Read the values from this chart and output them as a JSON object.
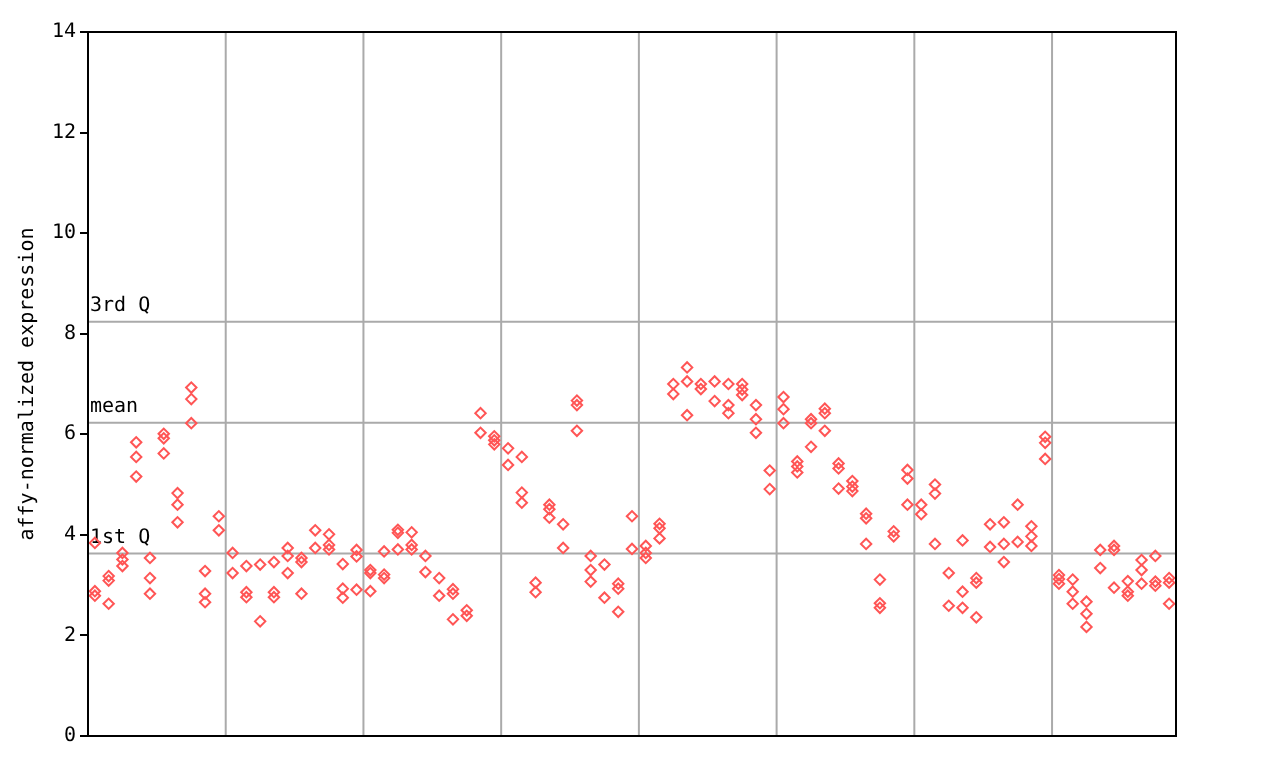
{
  "chart_data": {
    "type": "scatter",
    "ylabel": "affy-normalized expression",
    "categories": [
      null,
      null,
      null,
      null,
      null,
      null,
      null,
      null,
      null,
      null,
      null,
      null,
      null,
      null,
      null,
      null,
      null,
      null,
      null,
      null,
      null,
      null,
      null,
      null,
      null,
      null,
      null,
      null,
      null,
      null,
      null,
      null,
      null,
      null,
      null,
      null,
      null,
      null,
      null,
      null,
      null,
      null,
      null,
      null,
      null,
      null,
      null,
      null,
      null,
      null,
      null,
      null,
      null,
      null,
      null,
      null,
      null,
      null,
      null,
      null,
      null,
      null,
      null,
      null,
      null,
      null,
      null,
      null,
      null,
      null,
      null,
      null,
      null,
      null,
      null,
      null,
      null,
      null,
      null
    ],
    "ylim": [
      0,
      14
    ],
    "yticks": [
      0,
      2,
      4,
      6,
      8,
      10,
      12,
      14
    ],
    "grid": "x",
    "tick_labels": "y",
    "marker": "diamond",
    "ref_lines": [
      {
        "axis": "y",
        "value": 8.24,
        "label": "3rd Q",
        "color": "#aaaaaa"
      },
      {
        "axis": "y",
        "value": 6.23,
        "label": "mean",
        "color": "#aaaaaa"
      },
      {
        "axis": "y",
        "value": 3.63,
        "label": "1st Q",
        "color": "#aaaaaa"
      }
    ],
    "series": [
      {
        "color": "#ff5555",
        "values": [
          2.88,
          3.18,
          3.64,
          5.84,
          3.54,
          6.01,
          4.83,
          6.93,
          3.28,
          4.37,
          3.64,
          3.38,
          3.41,
          3.46,
          3.74,
          3.54,
          4.09,
          4.01,
          3.42,
          3.7,
          3.3,
          3.67,
          4.1,
          4.05,
          3.58,
          3.14,
          2.92,
          2.5,
          6.42,
          5.96,
          5.72,
          5.55,
          3.05,
          4.6,
          4.21,
          6.67,
          3.58,
          3.41,
          3.03,
          4.37,
          3.78,
          4.22,
          7.0,
          7.33,
          7.0,
          7.05,
          7.0,
          7.0,
          6.58,
          5.28,
          6.74,
          5.46,
          6.3,
          6.51,
          5.42,
          5.07,
          4.42,
          3.11,
          4.07,
          5.29,
          4.6,
          5.0,
          3.24,
          3.89,
          3.14,
          4.21,
          4.25,
          4.6,
          4.17,
          5.95,
          3.2,
          3.11,
          2.67,
          3.7,
          3.78,
          3.08,
          3.5,
          3.58,
          3.14
        ]
      },
      {
        "color": "#ff5555",
        "values": [
          2.79,
          3.09,
          3.51,
          5.55,
          3.14,
          5.92,
          4.6,
          6.7,
          2.83,
          4.09,
          3.24,
          2.86,
          2.28,
          2.86,
          3.58,
          3.46,
          3.74,
          3.8,
          2.93,
          3.57,
          3.24,
          3.21,
          4.04,
          3.8,
          3.26,
          2.79,
          2.83,
          2.39,
          6.03,
          5.88,
          5.39,
          4.84,
          2.86,
          4.51,
          3.74,
          6.58,
          3.3,
          2.75,
          2.93,
          3.72,
          3.64,
          4.13,
          6.8,
          7.05,
          6.9,
          6.66,
          6.58,
          6.89,
          6.3,
          4.91,
          6.5,
          5.36,
          6.22,
          6.42,
          5.32,
          4.96,
          4.33,
          2.64,
          3.97,
          5.12,
          4.41,
          4.82,
          2.59,
          2.87,
          3.05,
          3.76,
          3.82,
          3.86,
          3.97,
          5.83,
          3.12,
          2.87,
          2.43,
          3.34,
          3.7,
          2.87,
          3.3,
          3.07,
          3.05
        ]
      },
      {
        "color": "#ff5555",
        "values": [
          3.84,
          2.63,
          3.38,
          5.16,
          2.83,
          5.62,
          4.25,
          6.22,
          2.66,
          null,
          null,
          2.76,
          null,
          2.76,
          3.24,
          2.83,
          null,
          3.71,
          2.75,
          2.91,
          2.88,
          3.14,
          3.71,
          3.71,
          null,
          null,
          2.32,
          null,
          null,
          5.8,
          null,
          4.64,
          null,
          4.34,
          null,
          6.07,
          3.07,
          null,
          2.47,
          null,
          3.54,
          3.93,
          null,
          6.38,
          null,
          null,
          6.42,
          6.78,
          6.03,
          null,
          6.22,
          5.24,
          5.75,
          6.07,
          4.92,
          4.87,
          3.82,
          2.55,
          null,
          4.6,
          null,
          3.82,
          null,
          2.55,
          2.36,
          null,
          3.46,
          null,
          3.78,
          5.51,
          3.03,
          2.63,
          2.17,
          null,
          2.95,
          2.79,
          3.03,
          2.99,
          2.63
        ]
      }
    ]
  }
}
